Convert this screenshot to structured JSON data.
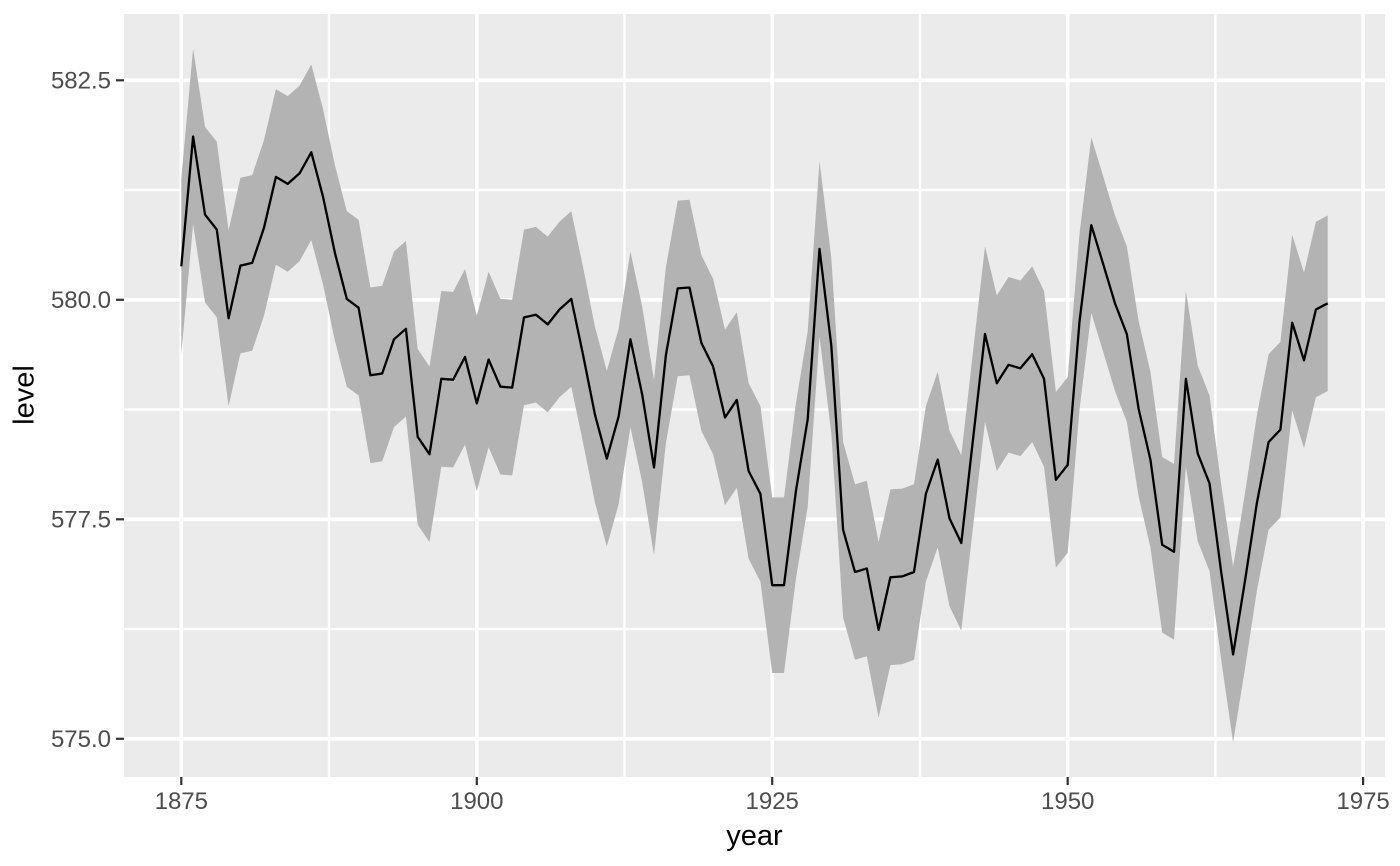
{
  "chart_data": {
    "type": "line",
    "title": "",
    "xlabel": "year",
    "ylabel": "level",
    "x_start": 1875,
    "x_step": 1,
    "series": [
      {
        "name": "level",
        "values": [
          580.38,
          581.86,
          580.97,
          580.8,
          579.79,
          580.39,
          580.42,
          580.82,
          581.4,
          581.32,
          581.44,
          581.68,
          581.17,
          580.53,
          580.01,
          579.91,
          579.14,
          579.16,
          579.55,
          579.67,
          578.44,
          578.24,
          579.1,
          579.09,
          579.35,
          578.82,
          579.32,
          579.01,
          579.0,
          579.8,
          579.83,
          579.72,
          579.89,
          580.01,
          579.37,
          578.69,
          578.19,
          578.67,
          579.55,
          578.92,
          578.09,
          579.37,
          580.13,
          580.14,
          579.51,
          579.24,
          578.66,
          578.86,
          578.05,
          577.79,
          576.75,
          576.75,
          577.82,
          578.64,
          580.58,
          579.48,
          577.38,
          576.9,
          576.94,
          576.24,
          576.84,
          576.85,
          576.9,
          577.79,
          578.18,
          577.51,
          577.23,
          578.42,
          579.61,
          579.05,
          579.26,
          579.22,
          579.38,
          579.1,
          577.95,
          578.12,
          579.75,
          580.85,
          580.41,
          579.96,
          579.61,
          578.76,
          578.18,
          577.21,
          577.13,
          579.1,
          578.25,
          577.91,
          576.89,
          575.96,
          576.8,
          577.68,
          578.38,
          578.52,
          579.74,
          579.31,
          579.89,
          579.96
        ]
      }
    ],
    "ribbon": {
      "half_width": 1.0,
      "around_series": "level"
    },
    "x_ticks": [
      1875,
      1900,
      1925,
      1950,
      1975
    ],
    "x_minor_ticks": [
      1887.5,
      1912.5,
      1937.5,
      1962.5
    ],
    "y_ticks": [
      575.0,
      577.5,
      580.0,
      582.5
    ],
    "y_tick_labels": [
      "575.0",
      "577.5",
      "580.0",
      "582.5"
    ],
    "y_minor_ticks": [
      576.25,
      578.75,
      581.25
    ],
    "xlim": [
      1870.15,
      1976.85
    ],
    "ylim": [
      574.565,
      583.255
    ],
    "grid": true,
    "legend": "none",
    "colors": {
      "line": "#000000",
      "ribbon": "#B3B3B3",
      "panel_bg": "#EBEBEB",
      "grid": "#FFFFFF",
      "tick_text": "#4D4D4D",
      "tick_mark": "#333333",
      "title_text": "#000000",
      "page_bg": "#FFFFFF"
    }
  }
}
